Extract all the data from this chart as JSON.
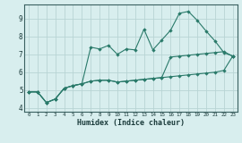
{
  "xlabel": "Humidex (Indice chaleur)",
  "x_values": [
    0,
    1,
    2,
    3,
    4,
    5,
    6,
    7,
    8,
    9,
    10,
    11,
    12,
    13,
    14,
    15,
    16,
    17,
    18,
    19,
    20,
    21,
    22,
    23
  ],
  "line1": [
    4.9,
    4.9,
    4.3,
    4.5,
    5.1,
    5.25,
    5.35,
    7.4,
    7.3,
    7.5,
    7.0,
    7.3,
    7.25,
    8.4,
    7.25,
    7.8,
    8.35,
    9.3,
    9.4,
    8.9,
    8.3,
    7.75,
    7.1,
    6.9
  ],
  "line2": [
    4.9,
    4.9,
    4.3,
    4.5,
    5.1,
    5.25,
    5.35,
    5.5,
    5.55,
    5.55,
    5.45,
    5.5,
    5.55,
    5.6,
    5.65,
    5.7,
    5.75,
    5.8,
    5.85,
    5.9,
    5.95,
    6.0,
    6.1,
    6.9
  ],
  "line3": [
    4.9,
    4.9,
    4.3,
    4.5,
    5.1,
    5.25,
    5.35,
    5.5,
    5.55,
    5.55,
    5.45,
    5.5,
    5.55,
    5.6,
    5.65,
    5.7,
    6.85,
    6.9,
    6.95,
    7.0,
    7.05,
    7.1,
    7.15,
    6.9
  ],
  "line_color": "#2a7a6a",
  "bg_color": "#d8eeee",
  "grid_color": "#b8d4d4",
  "ylim": [
    3.8,
    9.8
  ],
  "xlim": [
    -0.5,
    23.5
  ],
  "yticks": [
    4,
    5,
    6,
    7,
    8,
    9
  ],
  "xticks": [
    0,
    1,
    2,
    3,
    4,
    5,
    6,
    7,
    8,
    9,
    10,
    11,
    12,
    13,
    14,
    15,
    16,
    17,
    18,
    19,
    20,
    21,
    22,
    23
  ]
}
